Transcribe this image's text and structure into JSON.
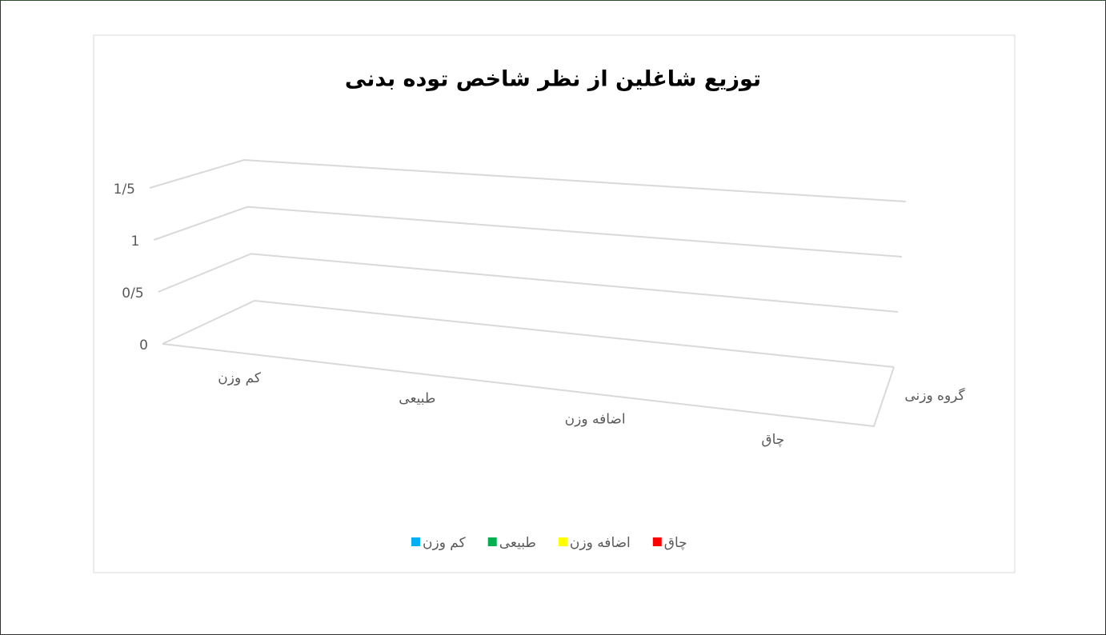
{
  "chart_data": {
    "type": "bar3d",
    "title": "توزیع شاغلین از نظر شاخص توده بدنی",
    "categories": [
      "کم وزن",
      "طبیعی",
      "اضافه وزن",
      "چاق"
    ],
    "series_axis_label": "گروه وزنی",
    "series": [
      {
        "name": "کم وزن",
        "color": "#00b0f0",
        "values": [
          null,
          null,
          null,
          null
        ]
      },
      {
        "name": "طبیعی",
        "color": "#00b050",
        "values": [
          null,
          null,
          null,
          null
        ]
      },
      {
        "name": "اضافه وزن",
        "color": "#ffff00",
        "values": [
          null,
          null,
          null,
          null
        ]
      },
      {
        "name": "چاق",
        "color": "#ff0000",
        "values": [
          null,
          null,
          null,
          null
        ]
      }
    ],
    "ylim": [
      0,
      1.5
    ],
    "yticks": [
      0,
      {
        "value": 0.5,
        "label": "0/5"
      },
      1,
      {
        "value": 1.5,
        "label": "1/5"
      }
    ],
    "grid": true,
    "legend": "bottom"
  }
}
